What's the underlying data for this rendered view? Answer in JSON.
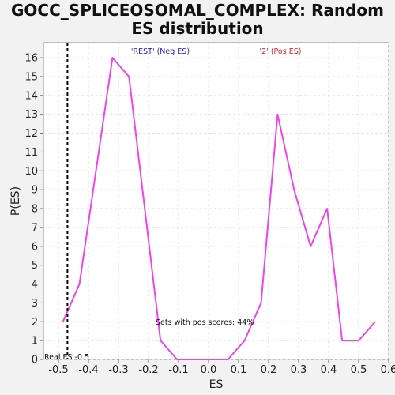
{
  "chart_data": {
    "type": "line",
    "title_line1": "GOCC_SPLICEOSOMAL_COMPLEX: Random",
    "title_line2": "ES distribution",
    "xlabel": "ES",
    "ylabel": "P(ES)",
    "xlim": [
      -0.55,
      0.6
    ],
    "ylim": [
      0,
      16.8
    ],
    "x_ticks": [
      -0.5,
      -0.4,
      -0.3,
      -0.2,
      -0.1,
      0.0,
      0.1,
      0.2,
      0.3,
      0.4,
      0.5,
      0.6
    ],
    "x_tick_labels": [
      "-0.5",
      "-0.4",
      "-0.3",
      "-0.2",
      "-0.1",
      "0.0",
      "0.1",
      "0.2",
      "0.3",
      "0.4",
      "0.5",
      "0.6"
    ],
    "y_ticks": [
      0,
      1,
      2,
      3,
      4,
      5,
      6,
      7,
      8,
      9,
      10,
      11,
      12,
      13,
      14,
      15,
      16
    ],
    "y_tick_labels": [
      "0",
      "1",
      "2",
      "3",
      "4",
      "5",
      "6",
      "7",
      "8",
      "9",
      "10",
      "11",
      "12",
      "13",
      "14",
      "15",
      "16"
    ],
    "grid": true,
    "series": [
      {
        "color": "#ee44ee",
        "x": [
          -0.485,
          -0.43,
          -0.32,
          -0.265,
          -0.16,
          -0.105,
          -0.05,
          0.005,
          0.065,
          0.12,
          0.175,
          0.23,
          0.285,
          0.34,
          0.395,
          0.445,
          0.5,
          0.555
        ],
        "y": [
          2,
          4,
          16,
          15,
          1,
          0,
          0,
          0,
          0,
          1,
          3,
          13,
          9,
          6,
          8,
          1,
          1,
          2
        ]
      }
    ],
    "real_es": -0.47,
    "real_es_label": "Real ES -0.5",
    "annotation": "Sets with pos scores: 44%",
    "neg_label": "'REST' (Neg ES)",
    "pos_label": "'2' (Pos ES)",
    "neg_color": "#2222cc",
    "pos_color": "#dd2222"
  }
}
